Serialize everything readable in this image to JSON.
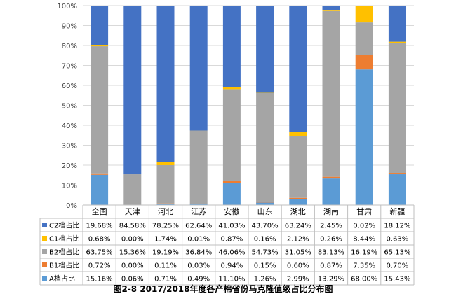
{
  "chart_data": {
    "type": "bar",
    "stacked": true,
    "percent": true,
    "caption": "图2-8 2017/2018年度各产棉省份马克隆值级占比分布图",
    "categories": [
      "全国",
      "天津",
      "河北",
      "江苏",
      "安徽",
      "山东",
      "湖北",
      "湖南",
      "甘肃",
      "新疆"
    ],
    "ylim": [
      0,
      100
    ],
    "yticks": [
      "0%",
      "10%",
      "20%",
      "30%",
      "40%",
      "50%",
      "60%",
      "70%",
      "80%",
      "90%",
      "100%"
    ],
    "grid": true,
    "series": [
      {
        "name": "A档占比",
        "color": "#5b9bd5",
        "values": [
          15.16,
          0.06,
          0.71,
          0.49,
          11.1,
          1.26,
          2.99,
          13.29,
          68.0,
          15.43
        ],
        "labels": [
          "15.16%",
          "0.06%",
          "0.71%",
          "0.49%",
          "11.10%",
          "1.26%",
          "2.99%",
          "13.29%",
          "68.00%",
          "15.43%"
        ]
      },
      {
        "name": "B1档占比",
        "color": "#ed7d31",
        "values": [
          0.72,
          0.0,
          0.11,
          0.03,
          0.94,
          0.15,
          0.6,
          0.87,
          7.35,
          0.7
        ],
        "labels": [
          "0.72%",
          "0.00%",
          "0.11%",
          "0.03%",
          "0.94%",
          "0.15%",
          "0.60%",
          "0.87%",
          "7.35%",
          "0.70%"
        ]
      },
      {
        "name": "B2档占比",
        "color": "#a5a5a5",
        "values": [
          63.75,
          15.36,
          19.19,
          36.84,
          46.06,
          54.73,
          31.05,
          83.13,
          16.19,
          65.13
        ],
        "labels": [
          "63.75%",
          "15.36%",
          "19.19%",
          "36.84%",
          "46.06%",
          "54.73%",
          "31.05%",
          "83.13%",
          "16.19%",
          "65.13%"
        ]
      },
      {
        "name": "C1档占比",
        "color": "#ffc000",
        "values": [
          0.68,
          0.0,
          1.74,
          0.01,
          0.87,
          0.16,
          2.12,
          0.26,
          8.44,
          0.63
        ],
        "labels": [
          "0.68%",
          "0.00%",
          "1.74%",
          "0.01%",
          "0.87%",
          "0.16%",
          "2.12%",
          "0.26%",
          "8.44%",
          "0.63%"
        ]
      },
      {
        "name": "C2档占比",
        "color": "#4472c4",
        "values": [
          19.68,
          84.58,
          78.25,
          62.64,
          41.03,
          43.7,
          63.24,
          2.45,
          0.02,
          18.12
        ],
        "labels": [
          "19.68%",
          "84.58%",
          "78.25%",
          "62.64%",
          "41.03%",
          "43.70%",
          "63.24%",
          "2.45%",
          "0.02%",
          "18.12%"
        ]
      }
    ]
  }
}
